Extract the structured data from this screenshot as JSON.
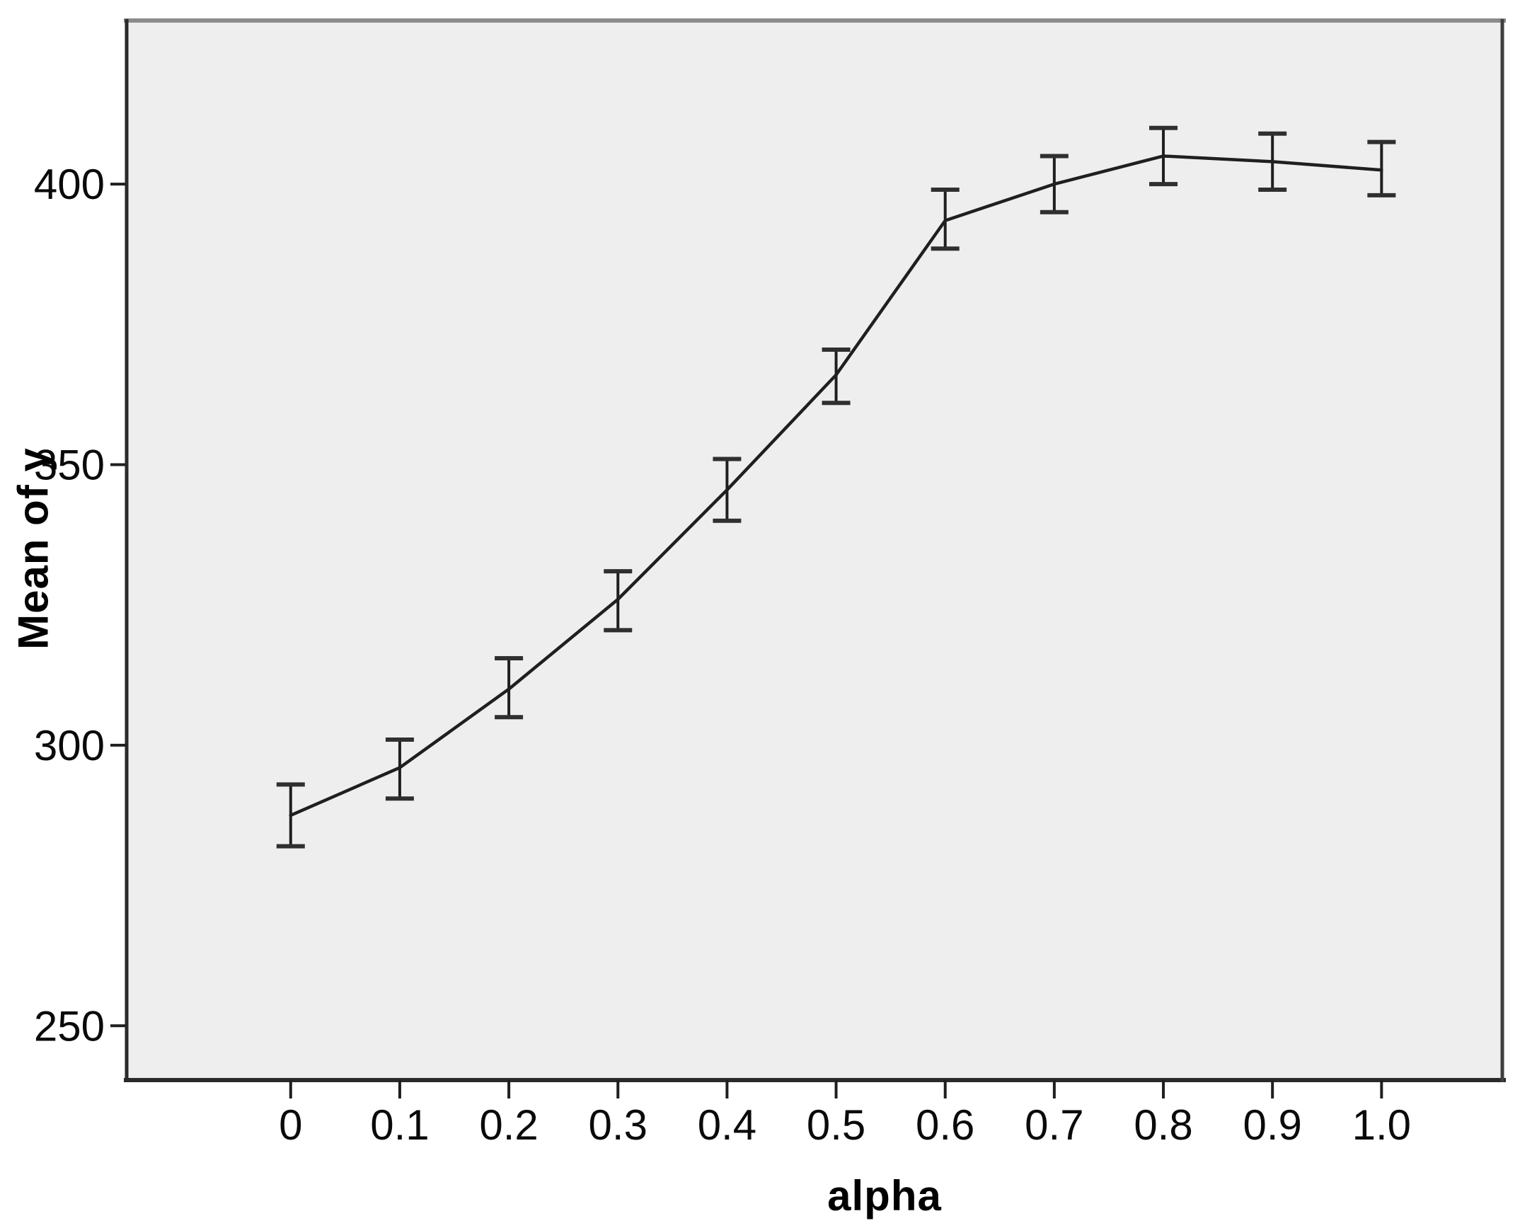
{
  "chart_data": {
    "type": "line",
    "title": "",
    "xlabel": "alpha",
    "ylabel": "Mean of y",
    "x": [
      0,
      0.1,
      0.2,
      0.3,
      0.4,
      0.5,
      0.6,
      0.7,
      0.8,
      0.9,
      1.0
    ],
    "x_tick_labels": [
      "0",
      "0.1",
      "0.2",
      "0.3",
      "0.4",
      "0.5",
      "0.6",
      "0.7",
      "0.8",
      "0.9",
      "1.0"
    ],
    "y_ticks": [
      250,
      300,
      350,
      400
    ],
    "y_tick_labels": [
      "250",
      "300",
      "350",
      "400"
    ],
    "series": [
      {
        "name": "Mean of y",
        "means": [
          287.5,
          296.0,
          310.0,
          326.0,
          345.5,
          366.0,
          393.5,
          400.0,
          405.0,
          404.0,
          402.5
        ],
        "ci_lower": [
          282.0,
          290.5,
          305.0,
          320.5,
          340.0,
          361.0,
          388.5,
          395.0,
          400.0,
          399.0,
          398.0
        ],
        "ci_upper": [
          293.0,
          301.0,
          315.5,
          331.0,
          351.0,
          370.5,
          399.0,
          405.0,
          410.0,
          409.0,
          407.5
        ]
      }
    ],
    "xlim": [
      -0.151,
      1.112
    ],
    "ylim": [
      240.7,
      429.4
    ],
    "grid": false,
    "legend": "none",
    "error_bars": true,
    "marker": "none",
    "plot_bg_color": "#EEEEEE",
    "line_color": "#1F1F1F",
    "error_bar_color": "#2F2F2F",
    "frame_top_color": "#8C8C8C",
    "frame_dark_color": "#2A2A2A",
    "tick_label_color": "#0A0A0A"
  }
}
